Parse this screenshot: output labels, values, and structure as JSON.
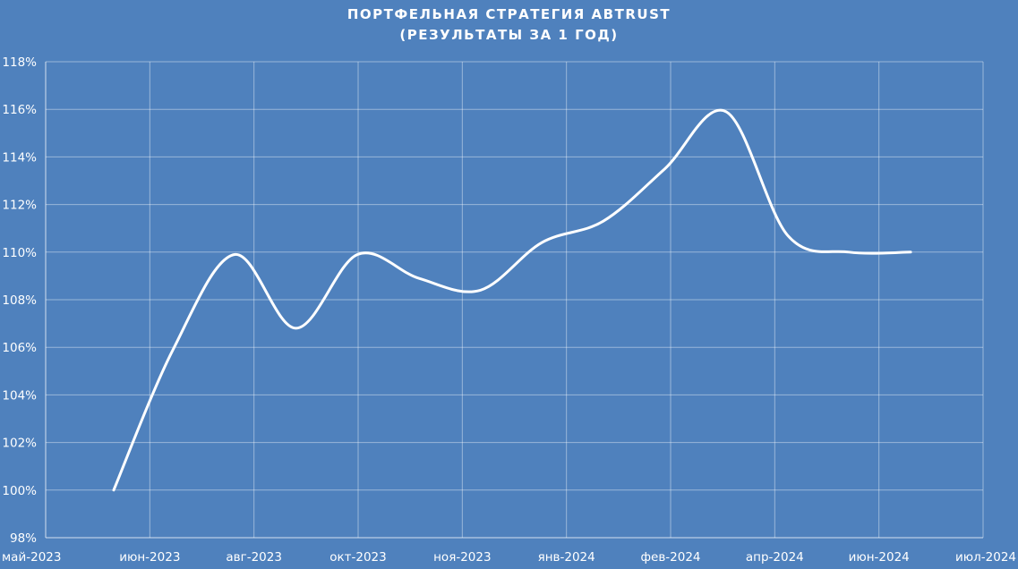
{
  "chart_data": {
    "type": "line",
    "title": "ПОРТФЕЛЬНАЯ СТРАТЕГИЯ ABTRUST",
    "subtitle": "(РЕЗУЛЬТАТЫ ЗА 1 ГОД)",
    "xlabel": "",
    "ylabel": "",
    "x_ticks": [
      "май-2023",
      "июн-2023",
      "авг-2023",
      "окт-2023",
      "ноя-2023",
      "янв-2024",
      "фев-2024",
      "апр-2024",
      "июн-2024",
      "июл-2024"
    ],
    "y_ticks": [
      "98%",
      "100%",
      "102%",
      "104%",
      "106%",
      "108%",
      "110%",
      "112%",
      "114%",
      "116%",
      "118%"
    ],
    "ylim": [
      98,
      118
    ],
    "grid": true,
    "legend": "none",
    "line_color": "#ffffff",
    "background_color": "#4f81bd",
    "series": [
      {
        "x": [
          "2023-06-01",
          "2023-06-28",
          "2023-07-26",
          "2023-08-23",
          "2023-09-20",
          "2023-10-18",
          "2023-11-15",
          "2023-12-13",
          "2024-01-10",
          "2024-02-07",
          "2024-03-06",
          "2024-04-03",
          "2024-05-01",
          "2024-05-29"
        ],
        "values": [
          100.0,
          105.9,
          109.9,
          106.8,
          109.9,
          108.9,
          108.4,
          110.4,
          111.3,
          113.5,
          115.9,
          110.7,
          110.0,
          110.0
        ]
      }
    ]
  }
}
